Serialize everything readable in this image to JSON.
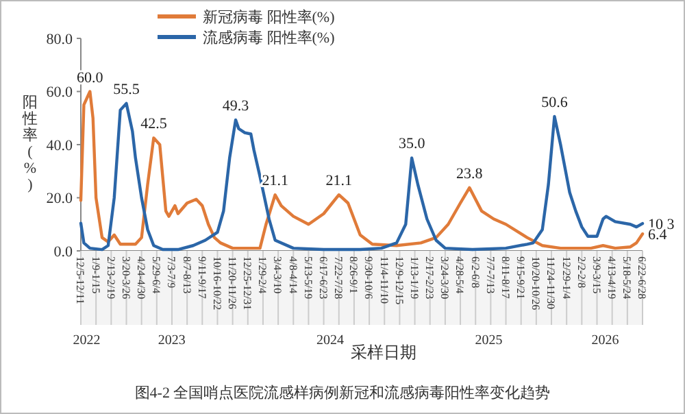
{
  "chart_data": {
    "type": "line",
    "title": "图4-2 全国哨点医院流感样病例新冠和流感病毒阳性率变化趋势",
    "xlabel": "采样日期",
    "ylabel": "阳性率(%)",
    "xlim": [
      "2022-12-05",
      "2026-06-22"
    ],
    "xticks": [
      {
        "value": "2022-12-05",
        "label": "12/5-12/11"
      },
      {
        "value": "2023-01-09",
        "label": "1/9-1/15"
      },
      {
        "value": "2023-02-13",
        "label": "2/13-2/19"
      },
      {
        "value": "2023-03-20",
        "label": "3/20-3/26"
      },
      {
        "value": "2023-04-24",
        "label": "4/24-4/30"
      },
      {
        "value": "2023-05-29",
        "label": "5/29-6/4"
      },
      {
        "value": "2023-07-03",
        "label": "7/3-7/9"
      },
      {
        "value": "2023-08-07",
        "label": "8/7-8/13"
      },
      {
        "value": "2023-09-11",
        "label": "9/11-9/17"
      },
      {
        "value": "2023-10-16",
        "label": "10/16-10/22"
      },
      {
        "value": "2023-11-20",
        "label": "11/20-11/26"
      },
      {
        "value": "2023-12-25",
        "label": "12/25-12/31"
      },
      {
        "value": "2024-01-29",
        "label": "1/29-2/4"
      },
      {
        "value": "2024-03-04",
        "label": "3/4-3/10"
      },
      {
        "value": "2024-04-08",
        "label": "4/8-4/14"
      },
      {
        "value": "2024-05-13",
        "label": "5/13-5/19"
      },
      {
        "value": "2024-06-17",
        "label": "6/17-6/23"
      },
      {
        "value": "2024-07-22",
        "label": "7/22-7/28"
      },
      {
        "value": "2024-08-26",
        "label": "8/26-9/1"
      },
      {
        "value": "2024-09-30",
        "label": "9/30-10/6"
      },
      {
        "value": "2024-11-04",
        "label": "11/4-11/10"
      },
      {
        "value": "2024-12-09",
        "label": "12/9-12/15"
      },
      {
        "value": "2025-01-13",
        "label": "1/13-1/19"
      },
      {
        "value": "2025-02-17",
        "label": "2/17-2/23"
      },
      {
        "value": "2025-03-24",
        "label": "3/24-3/30"
      },
      {
        "value": "2025-04-28",
        "label": "4/28-5/4"
      },
      {
        "value": "2025-06-02",
        "label": "6/2-6/8"
      },
      {
        "value": "2025-07-07",
        "label": "7/7-7/13"
      },
      {
        "value": "2025-08-11",
        "label": "8/11-8/17"
      },
      {
        "value": "2025-09-15",
        "label": "9/15-9/21"
      },
      {
        "value": "2025-10-20",
        "label": "10/20-10/26"
      },
      {
        "value": "2025-11-24",
        "label": "11/24-11/30"
      },
      {
        "value": "2025-12-29",
        "label": "12/29-1/4"
      },
      {
        "value": "2026-02-02",
        "label": "2/2-2/8"
      },
      {
        "value": "2026-03-09",
        "label": "3/9-3/15"
      },
      {
        "value": "2026-04-13",
        "label": "4/13-4/19"
      },
      {
        "value": "2026-05-18",
        "label": "5/18-5/24"
      },
      {
        "value": "2026-06-22",
        "label": "6/22-6/28"
      }
    ],
    "ylim": [
      0,
      80
    ],
    "yticks": [
      {
        "value": 0,
        "label": "0.0"
      },
      {
        "value": 20,
        "label": "20.0"
      },
      {
        "value": 40,
        "label": "40.0"
      },
      {
        "value": 60,
        "label": "60.0"
      },
      {
        "value": 80,
        "label": "80.0"
      }
    ],
    "legend": "top",
    "marker": "none",
    "line_style": "solid",
    "series": [
      {
        "name": "新冠病毒 阳性率(%)",
        "color": "#e07b39",
        "x": [
          "2022-12-05",
          "2022-12-12",
          "2022-12-26",
          "2023-01-02",
          "2023-01-09",
          "2023-01-23",
          "2023-02-06",
          "2023-02-20",
          "2023-03-06",
          "2023-04-10",
          "2023-04-24",
          "2023-05-08",
          "2023-05-22",
          "2023-06-05",
          "2023-06-19",
          "2023-06-26",
          "2023-07-10",
          "2023-07-17",
          "2023-08-07",
          "2023-08-28",
          "2023-09-11",
          "2023-09-25",
          "2023-10-09",
          "2023-10-23",
          "2023-11-20",
          "2024-01-22",
          "2024-02-05",
          "2024-02-26",
          "2024-03-11",
          "2024-04-08",
          "2024-05-13",
          "2024-06-17",
          "2024-07-22",
          "2024-08-12",
          "2024-09-09",
          "2024-10-07",
          "2024-12-02",
          "2025-01-27",
          "2025-03-03",
          "2025-03-31",
          "2025-04-28",
          "2025-05-19",
          "2025-06-16",
          "2025-07-14",
          "2025-08-11",
          "2025-09-29",
          "2025-11-03",
          "2025-12-15",
          "2026-02-23",
          "2026-03-23",
          "2026-04-20",
          "2026-05-25",
          "2026-06-08",
          "2026-06-22"
        ],
        "values": [
          19,
          55,
          60,
          50,
          20,
          5,
          3.4,
          6,
          2.5,
          2.5,
          5,
          25,
          42.5,
          40,
          15,
          13,
          17,
          14,
          18,
          19.4,
          17,
          10,
          5,
          3,
          1,
          1,
          10,
          21.1,
          17,
          13,
          10,
          14,
          21.1,
          18,
          6,
          2.5,
          2,
          3,
          5,
          10,
          18,
          23.8,
          15,
          12,
          10,
          5,
          2,
          1,
          1,
          2,
          1,
          1.5,
          3,
          6.4
        ]
      },
      {
        "name": "流感病毒 阳性率(%)",
        "color": "#2b66a8",
        "x": [
          "2022-12-05",
          "2022-12-12",
          "2022-12-26",
          "2023-01-23",
          "2023-02-06",
          "2023-02-20",
          "2023-03-06",
          "2023-03-20",
          "2023-04-03",
          "2023-04-10",
          "2023-04-24",
          "2023-05-08",
          "2023-05-22",
          "2023-06-12",
          "2023-07-17",
          "2023-08-21",
          "2023-09-18",
          "2023-10-16",
          "2023-10-30",
          "2023-11-13",
          "2023-11-27",
          "2023-12-04",
          "2023-12-18",
          "2024-01-01",
          "2024-01-08",
          "2024-01-22",
          "2024-02-12",
          "2024-02-26",
          "2024-04-08",
          "2024-06-17",
          "2024-07-29",
          "2024-09-09",
          "2024-10-28",
          "2024-12-02",
          "2024-12-23",
          "2025-01-06",
          "2025-01-20",
          "2025-02-10",
          "2025-03-03",
          "2025-03-24",
          "2025-05-26",
          "2025-08-11",
          "2025-09-29",
          "2025-10-13",
          "2025-11-03",
          "2025-11-17",
          "2025-12-01",
          "2025-12-15",
          "2026-01-05",
          "2026-01-19",
          "2026-02-02",
          "2026-02-16",
          "2026-03-09",
          "2026-03-23",
          "2026-03-30",
          "2026-04-20",
          "2026-05-25",
          "2026-06-08",
          "2026-06-22"
        ],
        "values": [
          10.4,
          3,
          1,
          0.5,
          2,
          20,
          53,
          55.5,
          45,
          35,
          20,
          8,
          2,
          0.5,
          0.5,
          2,
          4,
          7,
          15,
          35,
          49.3,
          46,
          44.5,
          44,
          38,
          28,
          12,
          4,
          1,
          0.5,
          0.5,
          0.5,
          1,
          3,
          10,
          35,
          25,
          12,
          4,
          1,
          0.5,
          1,
          2.5,
          3,
          8,
          25,
          50.6,
          40,
          22,
          15,
          9,
          5.5,
          5.5,
          12,
          13,
          11,
          10,
          9,
          10.3
        ]
      }
    ],
    "annotations": [
      {
        "text": "60.0",
        "x": "2022-12-26",
        "y": 60
      },
      {
        "text": "55.5",
        "x": "2023-03-20",
        "y": 55.5
      },
      {
        "text": "42.5",
        "x": "2023-05-22",
        "y": 42.5
      },
      {
        "text": "49.3",
        "x": "2023-11-27",
        "y": 49.3
      },
      {
        "text": "21.1",
        "x": "2024-02-26",
        "y": 21.1
      },
      {
        "text": "21.1",
        "x": "2024-07-22",
        "y": 21.1
      },
      {
        "text": "35.0",
        "x": "2025-01-06",
        "y": 35
      },
      {
        "text": "23.8",
        "x": "2025-05-19",
        "y": 23.8
      },
      {
        "text": "50.6",
        "x": "2025-12-01",
        "y": 50.6
      },
      {
        "text": "10.3",
        "x": "2026-06-22",
        "y": 10.3
      },
      {
        "text": "6.4",
        "x": "2026-06-22",
        "y": 6.4
      },
      "2022",
      "2023",
      "2024",
      "2025",
      "2026"
    ]
  }
}
